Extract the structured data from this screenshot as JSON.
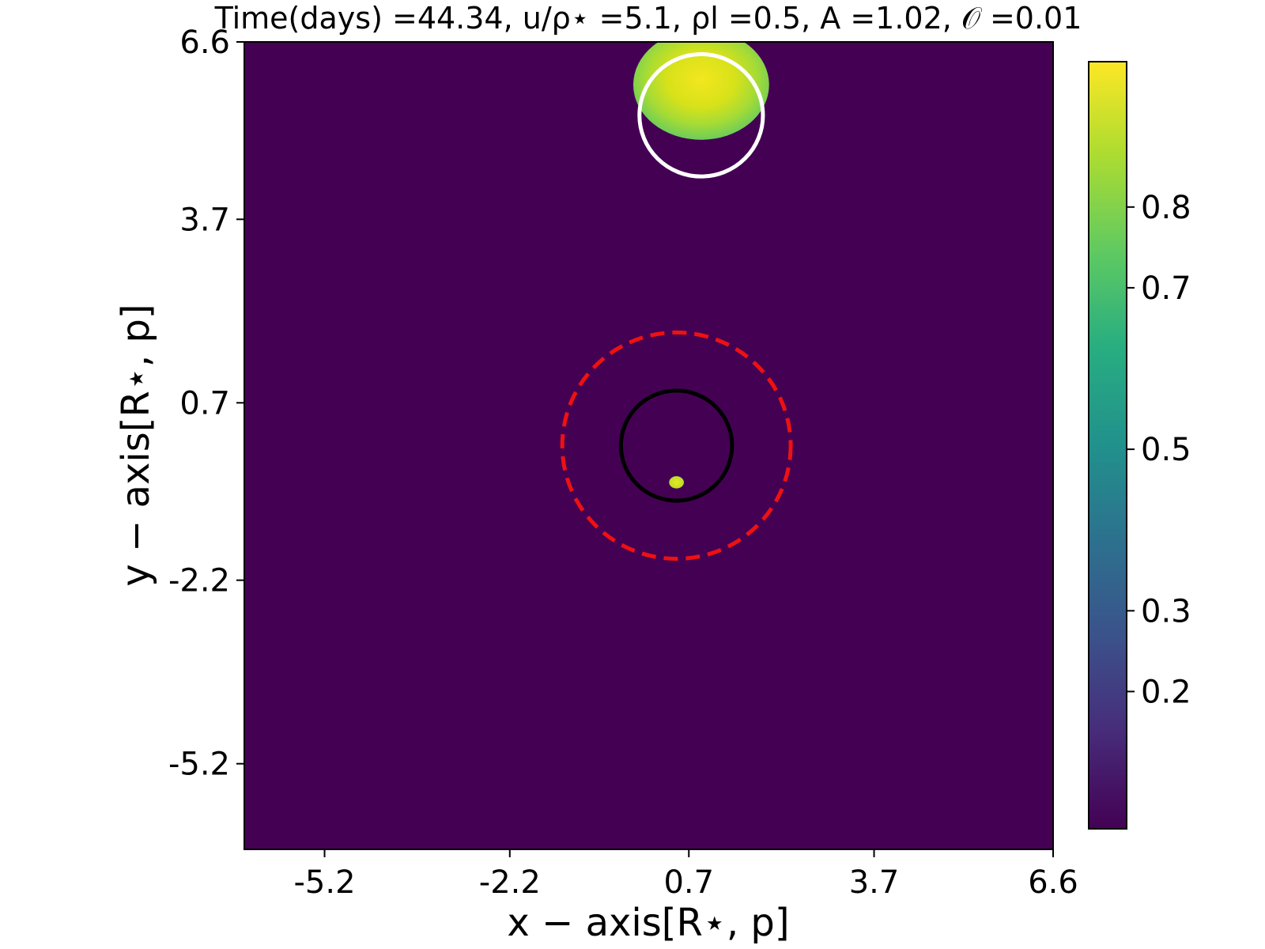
{
  "chart_data": {
    "type": "heatmap",
    "title": "Time(days) =44.34,  u/ρ⋆ =5.1,  ρl =0.5,  A =1.02,  𝒪 =0.01",
    "xlabel": "x − axis[R⋆, p]",
    "ylabel": "y − axis[R⋆, p]",
    "xlim": [
      -6.5,
      6.6
    ],
    "ylim": [
      -6.6,
      6.6
    ],
    "xticks": [
      "-5.2",
      "-2.2",
      "0.7",
      "3.7",
      "6.6"
    ],
    "yticks": [
      "6.6",
      "3.7",
      "0.7",
      "-2.2",
      "-5.2"
    ],
    "background_color": "#440154",
    "colorbar": {
      "ticks": [
        "0.8",
        "0.7",
        "0.5",
        "0.3",
        "0.2"
      ],
      "range": [
        0.03,
        0.98
      ],
      "colormap": "viridis"
    },
    "shapes": [
      {
        "name": "source-image-large",
        "kind": "filled-ellipse",
        "cx": 0.9,
        "cy": 5.9,
        "rx": 1.1,
        "ry": 0.9,
        "value_center": 0.98,
        "value_edge": 0.7
      },
      {
        "name": "source-image-small",
        "kind": "filled-ellipse",
        "cx": 0.5,
        "cy": -0.6,
        "rx": 0.12,
        "ry": 0.1,
        "value_center": 0.95,
        "value_edge": 0.9
      },
      {
        "name": "source-circle",
        "kind": "circle",
        "cx": 0.9,
        "cy": 5.4,
        "r": 1.0,
        "color": "#ffffff",
        "style": "solid"
      },
      {
        "name": "lens-circle",
        "kind": "circle",
        "cx": 0.5,
        "cy": 0.0,
        "r": 0.9,
        "color": "#000000",
        "style": "solid"
      },
      {
        "name": "einstein-ring",
        "kind": "circle",
        "cx": 0.5,
        "cy": 0.0,
        "r": 1.85,
        "color": "#ee1111",
        "style": "dashed"
      }
    ]
  }
}
